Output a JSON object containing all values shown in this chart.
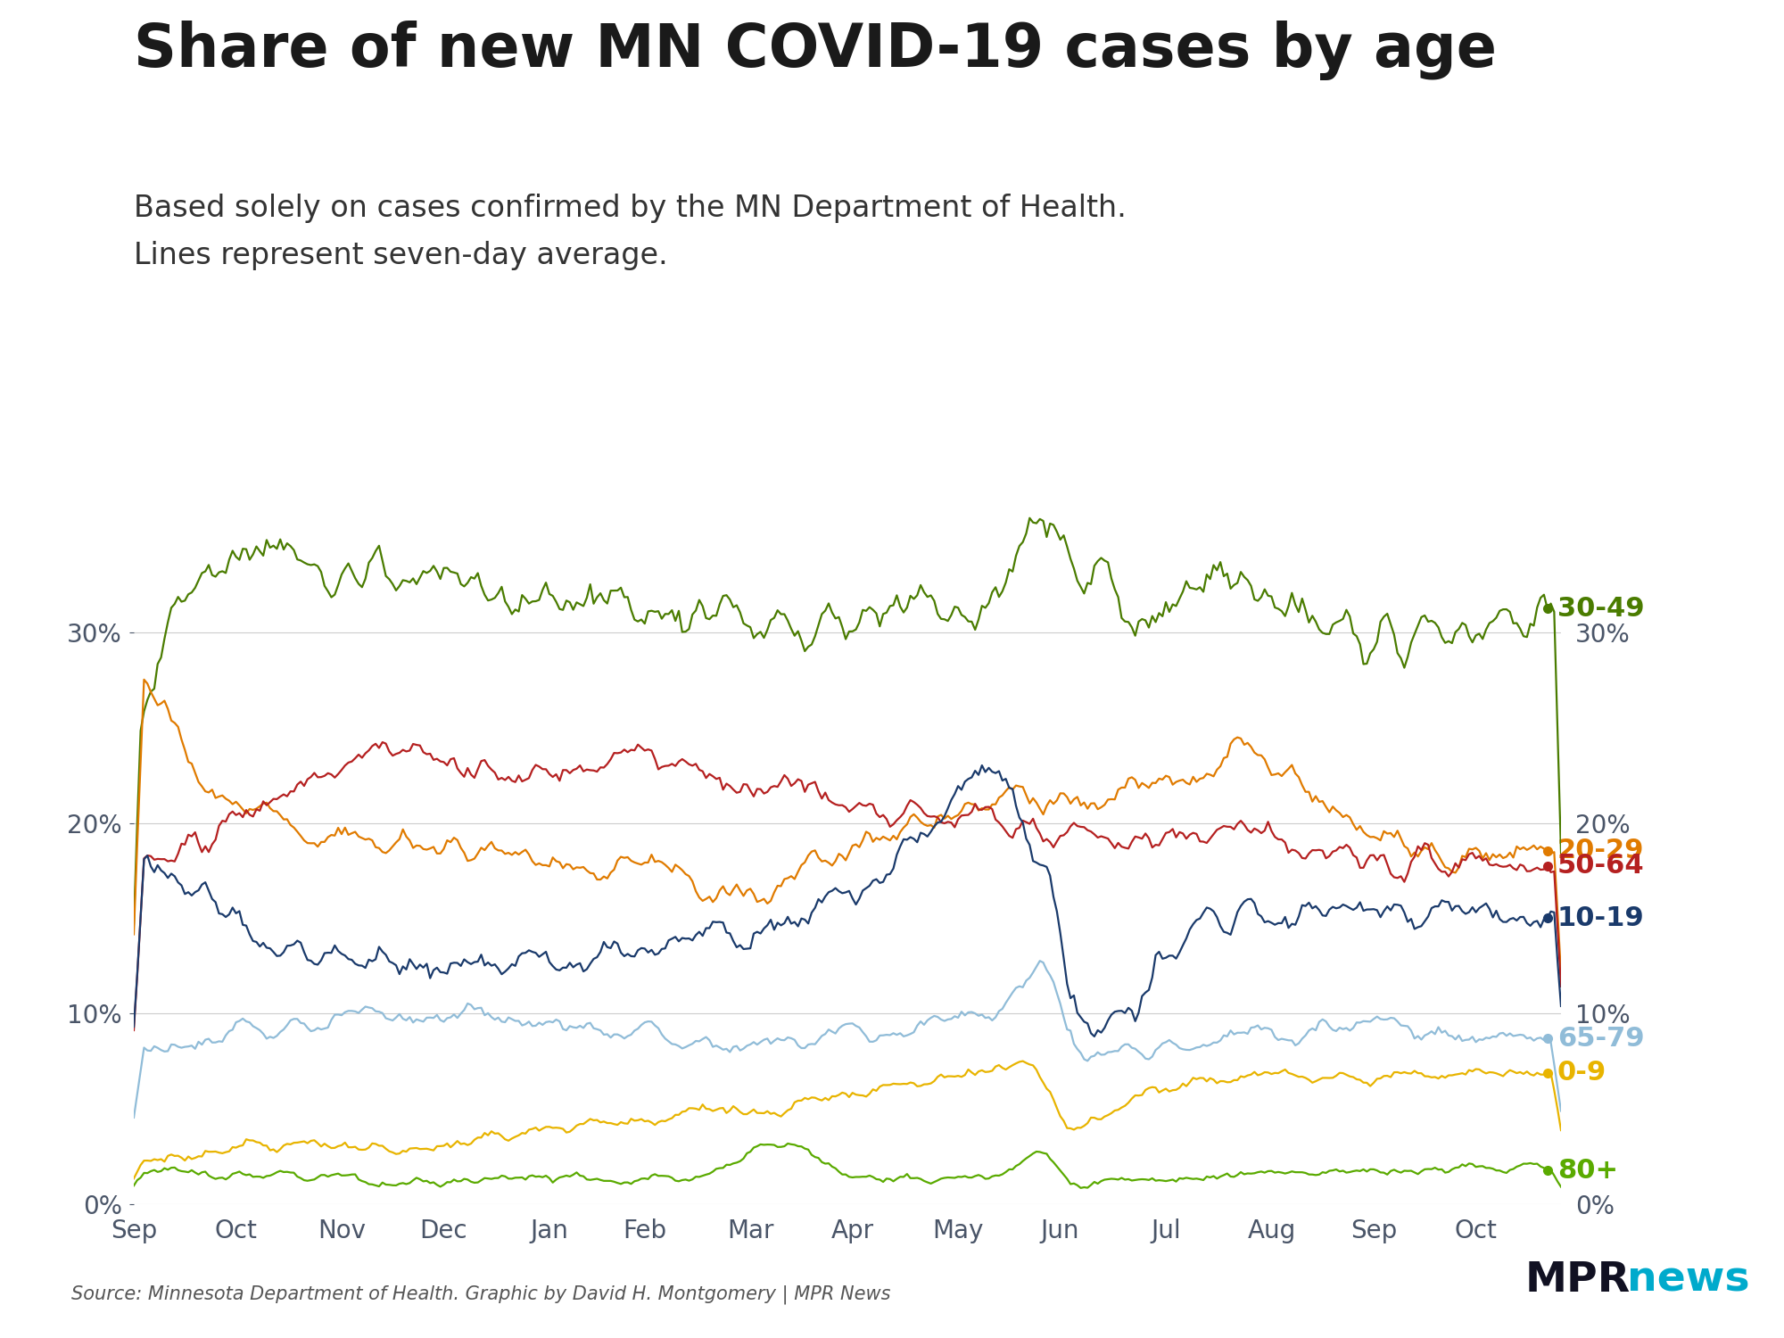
{
  "title": "Share of new MN COVID-19 cases by age",
  "subtitle1": "Based solely on cases confirmed by the MN Department of Health.",
  "subtitle2": "Lines represent seven-day average.",
  "source": "Source: Minnesota Department of Health. Graphic by David H. Montgomery | MPR News",
  "background_color": "#ffffff",
  "title_color": "#1a1a1a",
  "subtitle_color": "#333333",
  "source_color": "#555555",
  "axis_color": "#4a5568",
  "series": {
    "30-49": {
      "color": "#4a7c00"
    },
    "20-29": {
      "color": "#e07b00"
    },
    "50-64": {
      "color": "#b52020"
    },
    "10-19": {
      "color": "#1a3a6b"
    },
    "65-79": {
      "color": "#90bcd8"
    },
    "0-9": {
      "color": "#e8b400"
    },
    "80+": {
      "color": "#5aaa00"
    }
  },
  "ylim": [
    0,
    0.4
  ],
  "yticks": [
    0,
    0.1,
    0.2,
    0.3
  ],
  "month_ticks": [
    0,
    30,
    61,
    91,
    122,
    150,
    181,
    211,
    242,
    272,
    303,
    334,
    364,
    394
  ],
  "month_labels": [
    "Sep",
    "Oct",
    "Nov",
    "Dec",
    "Jan",
    "Feb",
    "Mar",
    "Apr",
    "May",
    "Jun",
    "Jul",
    "Aug",
    "Sep",
    "Oct"
  ],
  "n_points": 420
}
